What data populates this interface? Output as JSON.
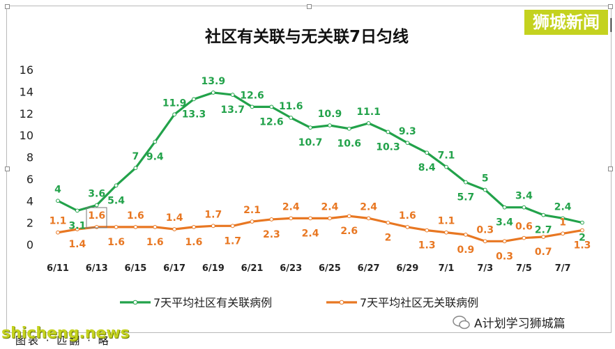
{
  "watermark": {
    "top_right": "狮城新闻",
    "cursor": "❘"
  },
  "chart_data": {
    "type": "line",
    "title": "社区有关联与无关联7日匀线",
    "xlabel": "",
    "ylabel": "",
    "ylim": [
      0,
      16
    ],
    "yticks": [
      0,
      2,
      4,
      6,
      8,
      10,
      12,
      14,
      16
    ],
    "grid": false,
    "legend_position": "bottom",
    "x": [
      "6/11",
      "6/12",
      "6/13",
      "6/14",
      "6/15",
      "6/16",
      "6/17",
      "6/18",
      "6/19",
      "6/20",
      "6/21",
      "6/22",
      "6/23",
      "6/24",
      "6/25",
      "6/26",
      "6/27",
      "6/28",
      "6/29",
      "6/30",
      "7/1",
      "7/2",
      "7/3",
      "7/4",
      "7/5",
      "7/6",
      "7/7",
      "7/8"
    ],
    "x_tick_labels": [
      "6/11",
      "6/13",
      "6/15",
      "6/17",
      "6/19",
      "6/21",
      "6/23",
      "6/25",
      "6/27",
      "6/29",
      "7/1",
      "7/3",
      "7/5",
      "7/7"
    ],
    "series": [
      {
        "name": "7天平均社区有关联病例",
        "color": "#22a24a",
        "values": [
          4,
          3.1,
          3.6,
          5.4,
          7,
          9.4,
          11.9,
          13.3,
          13.9,
          13.7,
          12.6,
          12.6,
          11.6,
          10.7,
          10.9,
          10.6,
          11.1,
          10.3,
          9.3,
          8.4,
          7.1,
          5.7,
          5,
          3.4,
          3.4,
          2.7,
          2.4,
          2
        ]
      },
      {
        "name": "7天平均社区无关联病例",
        "color": "#e87722",
        "values": [
          1.1,
          1.4,
          1.6,
          1.6,
          1.6,
          1.6,
          1.4,
          1.6,
          1.7,
          1.7,
          2.1,
          2.3,
          2.4,
          2.4,
          2.4,
          2.6,
          2.4,
          2,
          1.6,
          1.3,
          1.1,
          0.9,
          0.3,
          0.3,
          0.6,
          0.7,
          1,
          1.3
        ]
      }
    ]
  },
  "bottom": {
    "site": "shicheng.news",
    "menu": "图表 · 匹翻 · 略",
    "wechat": "A计划学习狮城篇",
    "page": "..."
  }
}
